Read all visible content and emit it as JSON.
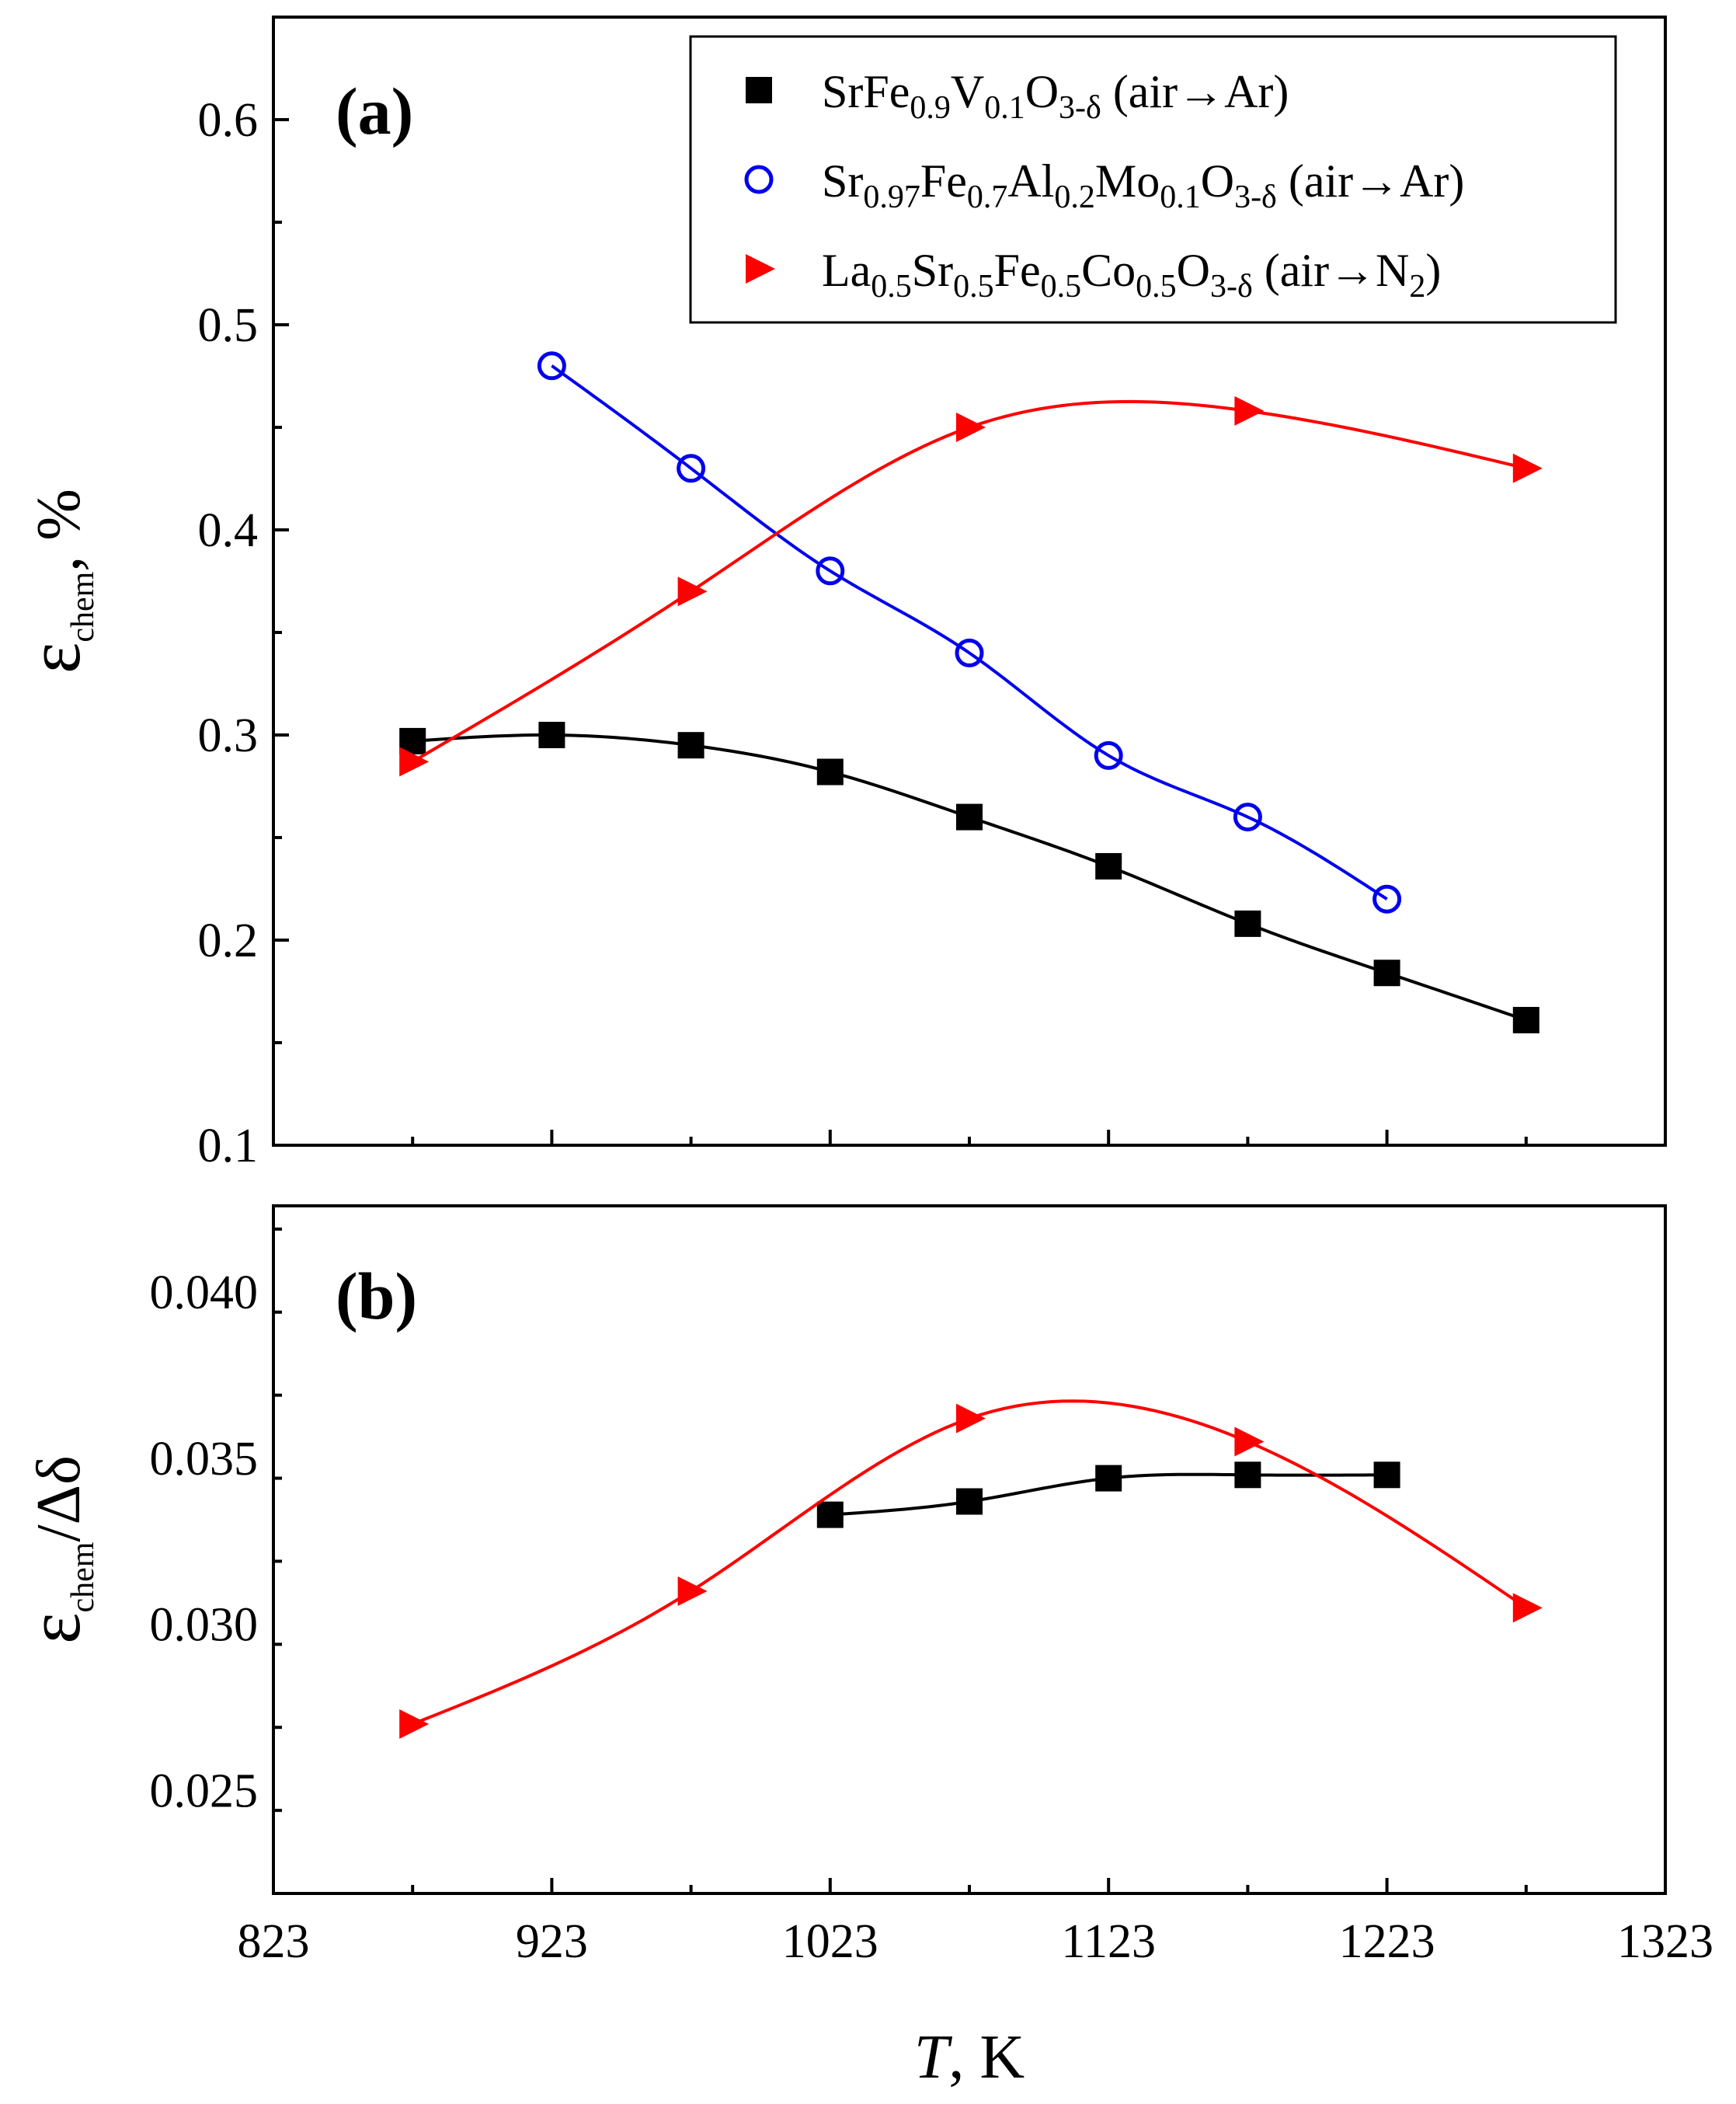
{
  "chart_data": [
    {
      "panel": "(a)",
      "type": "line",
      "ylabel": {
        "main": "ε",
        "sub": "chem",
        "tail": ", %"
      },
      "ylim": [
        0.1,
        0.65
      ],
      "yticks": [
        "0.1",
        "0.2",
        "0.3",
        "0.4",
        "0.5",
        "0.6"
      ],
      "xlim": [
        823,
        1323
      ],
      "series": [
        {
          "name": "SrFe0.9V0.1O3-δ (air→Ar)",
          "marker": "square",
          "color": "#000000",
          "x": [
            873,
            923,
            973,
            1023,
            1073,
            1123,
            1173,
            1223,
            1273
          ],
          "y": [
            0.297,
            0.3,
            0.295,
            0.282,
            0.26,
            0.236,
            0.208,
            0.184,
            0.161
          ]
        },
        {
          "name": "Sr0.97Fe0.7Al0.2Mo0.1O3-δ (air→Ar)",
          "marker": "circle",
          "color": "#0000ee",
          "x": [
            923,
            973,
            1023,
            1073,
            1123,
            1173,
            1223
          ],
          "y": [
            0.48,
            0.43,
            0.38,
            0.34,
            0.29,
            0.26,
            0.22
          ]
        },
        {
          "name": "La0.5Sr0.5Fe0.5Co0.5O3-δ (air→N2)",
          "marker": "triangle-right",
          "color": "#ff0000",
          "x": [
            873,
            973,
            1073,
            1173,
            1273
          ],
          "y": [
            0.287,
            0.37,
            0.45,
            0.458,
            0.43
          ]
        }
      ],
      "legend": [
        {
          "parts": [
            [
              "SrFe",
              ""
            ],
            [
              "0.9",
              "sub"
            ],
            [
              "V",
              ""
            ],
            [
              "0.1",
              "sub"
            ],
            [
              "O",
              ""
            ],
            [
              "3-δ",
              "sub"
            ],
            [
              " (air→Ar)",
              ""
            ]
          ]
        },
        {
          "parts": [
            [
              "Sr",
              ""
            ],
            [
              "0.97",
              "sub"
            ],
            [
              "Fe",
              ""
            ],
            [
              "0.7",
              "sub"
            ],
            [
              "Al",
              ""
            ],
            [
              "0.2",
              "sub"
            ],
            [
              "Mo",
              ""
            ],
            [
              "0.1",
              "sub"
            ],
            [
              "O",
              ""
            ],
            [
              "3-δ",
              "sub"
            ],
            [
              " (air→Ar)",
              ""
            ]
          ]
        },
        {
          "parts": [
            [
              "La",
              ""
            ],
            [
              "0.5",
              "sub"
            ],
            [
              "Sr",
              ""
            ],
            [
              "0.5",
              "sub"
            ],
            [
              "Fe",
              ""
            ],
            [
              "0.5",
              "sub"
            ],
            [
              "Co",
              ""
            ],
            [
              "0.5",
              "sub"
            ],
            [
              "O",
              ""
            ],
            [
              "3-δ",
              "sub"
            ],
            [
              " (air→N",
              ""
            ],
            [
              "2",
              "sub"
            ],
            [
              ")",
              ""
            ]
          ]
        }
      ]
    },
    {
      "panel": "(b)",
      "type": "line",
      "ylabel": {
        "main": "ε",
        "sub": "chem",
        "tail": "/Δδ"
      },
      "ylim": [
        0.0219,
        0.0426
      ],
      "yticks": [
        "0.025",
        "0.030",
        "0.035",
        "0.040"
      ],
      "xlim": [
        823,
        1323
      ],
      "xticks": [
        "823",
        "923",
        "1023",
        "1123",
        "1223",
        "1323"
      ],
      "xlabel": {
        "italic": "T",
        "rest": ", K"
      },
      "series": [
        {
          "name": "SrFe0.9V0.1O3-δ (air→Ar)",
          "marker": "square",
          "color": "#000000",
          "x": [
            1023,
            1073,
            1123,
            1173,
            1223
          ],
          "y": [
            0.0333,
            0.0337,
            0.0344,
            0.0345,
            0.0345
          ]
        },
        {
          "name": "La0.5Sr0.5Fe0.5Co0.5O3-δ (air→N2)",
          "marker": "triangle-right",
          "color": "#ff0000",
          "x": [
            873,
            973,
            1073,
            1173,
            1273
          ],
          "y": [
            0.027,
            0.031,
            0.0362,
            0.0355,
            0.0305
          ]
        }
      ]
    }
  ]
}
